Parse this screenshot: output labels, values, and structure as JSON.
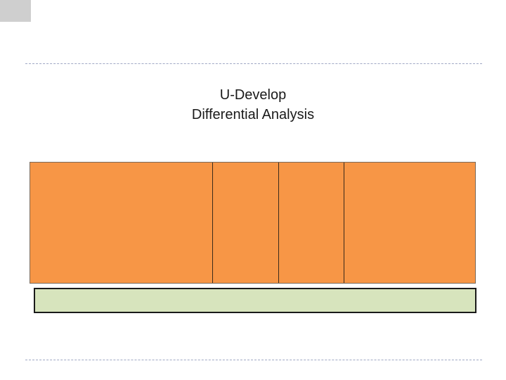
{
  "slide": {
    "title_line1": "U-Develop",
    "title_line2": "Differential Analysis"
  },
  "colors": {
    "table_fill": "#f79646",
    "bar_fill": "#d7e4bd",
    "corner_fill": "#cfcfcf",
    "divider": "#9fa8c4"
  }
}
